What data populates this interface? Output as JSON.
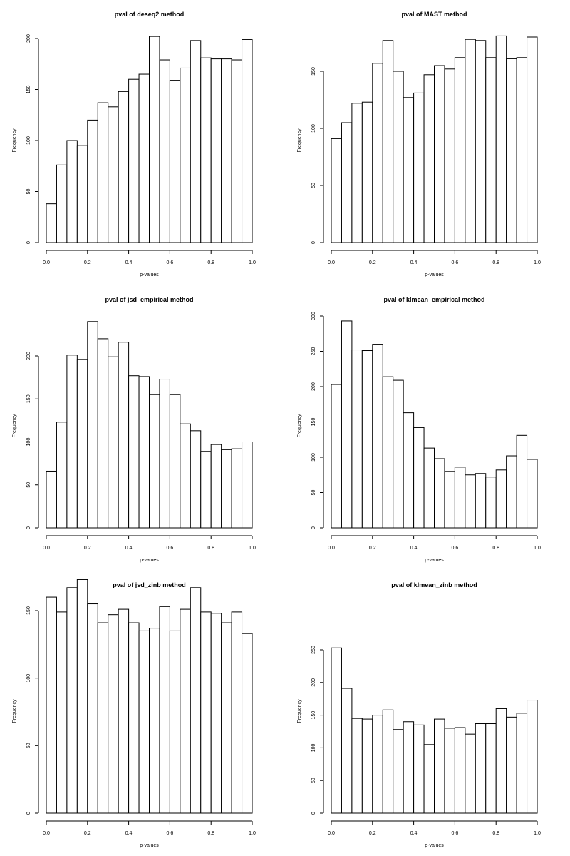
{
  "chart_data": [
    {
      "type": "bar",
      "title": "pval of deseq2 method",
      "xlabel": "p-values",
      "ylabel": "Frequency",
      "bin_width": 0.05,
      "xlim": [
        0,
        1
      ],
      "ylim": [
        0,
        200
      ],
      "x_ticks": [
        0.0,
        0.2,
        0.4,
        0.6,
        0.8,
        1.0
      ],
      "x_tick_labels": [
        "0.0",
        "0.2",
        "0.4",
        "0.6",
        "0.8",
        "1.0"
      ],
      "y_ticks": [
        0,
        50,
        100,
        150,
        200
      ],
      "values": [
        38,
        76,
        100,
        95,
        120,
        137,
        133,
        148,
        160,
        165,
        202,
        179,
        159,
        171,
        198,
        181,
        180,
        180,
        179,
        199
      ]
    },
    {
      "type": "bar",
      "title": "pval of MAST method",
      "xlabel": "p-values",
      "ylabel": "Frequency",
      "bin_width": 0.05,
      "xlim": [
        0,
        1
      ],
      "ylim": [
        0,
        150
      ],
      "x_ticks": [
        0.0,
        0.2,
        0.4,
        0.6,
        0.8,
        1.0
      ],
      "x_tick_labels": [
        "0.0",
        "0.2",
        "0.4",
        "0.6",
        "0.8",
        "1.0"
      ],
      "y_ticks": [
        0,
        50,
        100,
        150
      ],
      "values": [
        91,
        105,
        122,
        123,
        157,
        177,
        150,
        127,
        131,
        147,
        155,
        152,
        162,
        178,
        177,
        162,
        181,
        161,
        162,
        180
      ]
    },
    {
      "type": "bar",
      "title": "pval of jsd_empirical method",
      "xlabel": "p-values",
      "ylabel": "Frequency",
      "bin_width": 0.05,
      "xlim": [
        0,
        1
      ],
      "ylim": [
        0,
        200
      ],
      "x_ticks": [
        0.0,
        0.2,
        0.4,
        0.6,
        0.8,
        1.0
      ],
      "x_tick_labels": [
        "0.0",
        "0.2",
        "0.4",
        "0.6",
        "0.8",
        "1.0"
      ],
      "y_ticks": [
        0,
        50,
        100,
        150,
        200
      ],
      "values": [
        66,
        123,
        201,
        196,
        240,
        220,
        199,
        216,
        177,
        176,
        155,
        173,
        155,
        121,
        113,
        89,
        97,
        91,
        92,
        100
      ]
    },
    {
      "type": "bar",
      "title": "pval of klmean_empirical method",
      "xlabel": "p-values",
      "ylabel": "Frequency",
      "bin_width": 0.05,
      "xlim": [
        0,
        1
      ],
      "ylim": [
        0,
        300
      ],
      "x_ticks": [
        0.0,
        0.2,
        0.4,
        0.6,
        0.8,
        1.0
      ],
      "x_tick_labels": [
        "0.0",
        "0.2",
        "0.4",
        "0.6",
        "0.8",
        "1.0"
      ],
      "y_ticks": [
        0,
        50,
        100,
        150,
        200,
        250,
        300
      ],
      "values": [
        203,
        293,
        252,
        251,
        260,
        214,
        209,
        163,
        142,
        113,
        98,
        80,
        86,
        75,
        77,
        72,
        82,
        102,
        131,
        97
      ]
    },
    {
      "type": "bar",
      "title": "pval of jsd_zinb method",
      "xlabel": "p-values",
      "ylabel": "Frequency",
      "bin_width": 0.05,
      "xlim": [
        0,
        1
      ],
      "ylim": [
        0,
        150
      ],
      "x_ticks": [
        0.0,
        0.2,
        0.4,
        0.6,
        0.8,
        1.0
      ],
      "x_tick_labels": [
        "0.0",
        "0.2",
        "0.4",
        "0.6",
        "0.8",
        "1.0"
      ],
      "y_ticks": [
        0,
        50,
        100,
        150
      ],
      "values": [
        160,
        149,
        167,
        173,
        155,
        141,
        147,
        151,
        141,
        135,
        137,
        153,
        135,
        151,
        167,
        149,
        148,
        141,
        149,
        133
      ]
    },
    {
      "type": "bar",
      "title": "pval of klmean_zinb method",
      "xlabel": "p-values",
      "ylabel": "Frequency",
      "bin_width": 0.05,
      "xlim": [
        0,
        1
      ],
      "ylim": [
        0,
        250
      ],
      "x_ticks": [
        0.0,
        0.2,
        0.4,
        0.6,
        0.8,
        1.0
      ],
      "x_tick_labels": [
        "0.0",
        "0.2",
        "0.4",
        "0.6",
        "0.8",
        "1.0"
      ],
      "y_ticks": [
        0,
        50,
        100,
        150,
        200,
        250
      ],
      "values": [
        253,
        191,
        145,
        144,
        150,
        158,
        128,
        140,
        135,
        105,
        144,
        130,
        131,
        121,
        137,
        137,
        160,
        147,
        153,
        173
      ]
    }
  ]
}
